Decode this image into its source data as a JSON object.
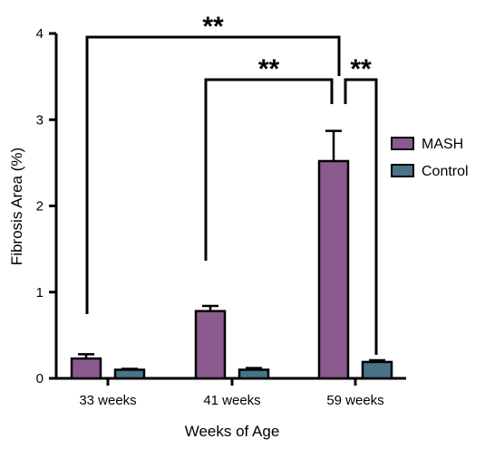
{
  "chart_data": {
    "type": "bar",
    "title": "",
    "xlabel": "Weeks of Age",
    "ylabel": "Fibrosis Area (%)",
    "ylim": [
      0,
      4
    ],
    "yticks": [
      "0",
      "1",
      "2",
      "3",
      "4"
    ],
    "categories": [
      "33 weeks",
      "41 weeks",
      "59 weeks"
    ],
    "series": [
      {
        "name": "MASH",
        "color": "#8b5a8f",
        "values": [
          0.23,
          0.78,
          2.52
        ],
        "errors": [
          0.05,
          0.06,
          0.35
        ]
      },
      {
        "name": "Control",
        "color": "#4a7388",
        "values": [
          0.1,
          0.1,
          0.19
        ],
        "errors": [
          0.01,
          0.02,
          0.02
        ]
      }
    ],
    "legend_position": "right",
    "grid": false,
    "annotations": [
      {
        "label": "**",
        "from": "33 weeks MASH",
        "to": "59 weeks MASH"
      },
      {
        "label": "**",
        "from": "41 weeks MASH",
        "to": "59 weeks MASH"
      },
      {
        "label": "**",
        "from": "59 weeks MASH",
        "to": "59 weeks Control"
      }
    ]
  }
}
